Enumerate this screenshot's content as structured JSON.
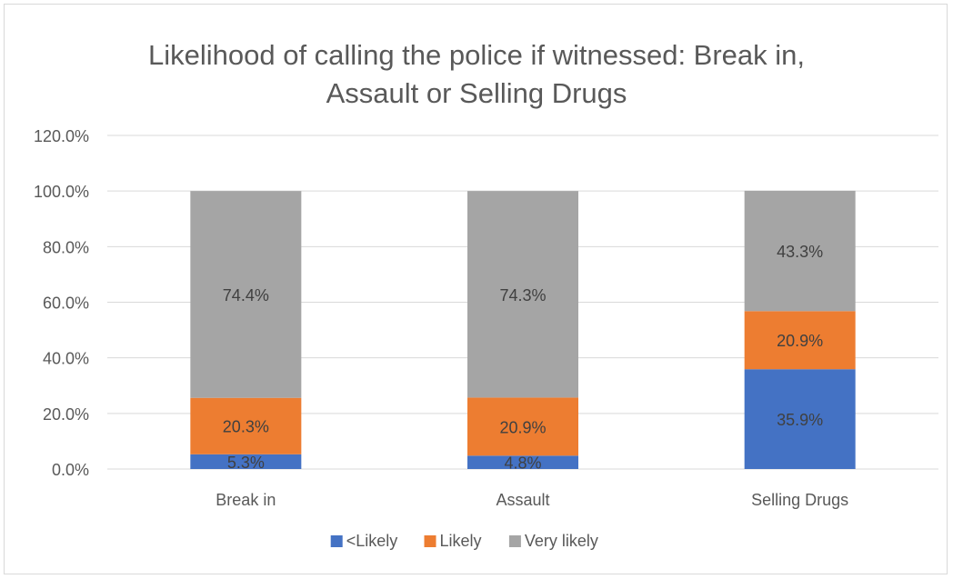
{
  "chart_data": {
    "type": "bar",
    "stacked": true,
    "title_lines": [
      "Likelihood of calling the police if witnessed: Break in,",
      "Assault or Selling Drugs"
    ],
    "categories": [
      "Break in",
      "Assault",
      "Selling Drugs"
    ],
    "series": [
      {
        "name": "<Likely",
        "color": "#4472c4",
        "values": [
          5.3,
          4.8,
          35.9
        ],
        "labels": [
          "5.3%",
          "4.8%",
          "35.9%"
        ]
      },
      {
        "name": "Likely",
        "color": "#ed7d31",
        "values": [
          20.3,
          20.9,
          20.9
        ],
        "labels": [
          "20.3%",
          "20.9%",
          "20.9%"
        ]
      },
      {
        "name": "Very likely",
        "color": "#a5a5a5",
        "values": [
          74.4,
          74.3,
          43.3
        ],
        "labels": [
          "74.4%",
          "74.3%",
          "43.3%"
        ]
      }
    ],
    "ylim": [
      0,
      120
    ],
    "yticks": [
      0,
      20,
      40,
      60,
      80,
      100,
      120
    ],
    "ytick_labels": [
      "0.0%",
      "20.0%",
      "40.0%",
      "60.0%",
      "80.0%",
      "100.0%",
      "120.0%"
    ],
    "xlabel": "",
    "ylabel": "",
    "grid": true,
    "legend_position": "bottom"
  }
}
